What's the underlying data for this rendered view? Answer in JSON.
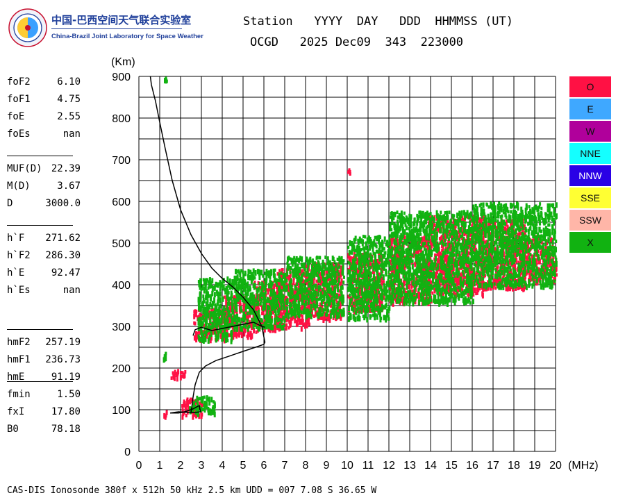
{
  "header": {
    "org_cn": "中国-巴西空间天气联合实验室",
    "org_en": "China-Brazil Joint Laboratory for Space Weather",
    "labels_line": "Station   YYYY  DAY   DDD  HHMMSS (UT)",
    "values_line": "OCGD   2025 Dec09  343  223000"
  },
  "params": {
    "groups": [
      [
        {
          "label": "foF2",
          "value": "6.10"
        },
        {
          "label": "foF1",
          "value": "4.75"
        },
        {
          "label": "foE",
          "value": "2.55"
        },
        {
          "label": "foEs",
          "value": "nan"
        }
      ],
      [
        {
          "label": "MUF(D)",
          "value": "22.39"
        },
        {
          "label": "M(D)",
          "value": "3.67"
        },
        {
          "label": "D",
          "value": "3000.0"
        }
      ],
      [
        {
          "label": "h`F",
          "value": "271.62"
        },
        {
          "label": "h`F2",
          "value": "286.30"
        },
        {
          "label": "h`E",
          "value": "92.47"
        },
        {
          "label": "h`Es",
          "value": "nan"
        }
      ],
      [
        {
          "label": "hmF2",
          "value": "257.19"
        },
        {
          "label": "hmF1",
          "value": "236.73"
        },
        {
          "label": "hmE",
          "value": "91.19"
        }
      ],
      [
        {
          "label": "fmin",
          "value": "1.50"
        },
        {
          "label": "fxI",
          "value": "17.80"
        },
        {
          "label": "B0",
          "value": "78.18"
        }
      ]
    ]
  },
  "legend": [
    {
      "label": "O",
      "color": "#ff1144"
    },
    {
      "label": "E",
      "color": "#3fa8ff"
    },
    {
      "label": "W",
      "color": "#b0009b"
    },
    {
      "label": "NNE",
      "color": "#14ffff"
    },
    {
      "label": "NNW",
      "color": "#2a00e6"
    },
    {
      "label": "SSE",
      "color": "#ffff33"
    },
    {
      "label": "SSW",
      "color": "#ffb6a8"
    },
    {
      "label": "X",
      "color": "#11b211"
    }
  ],
  "footer": "CAS-DIS Ionosonde 380f x 512h 50 kHz 2.5 km UDD = 007 7.08 S 36.65 W",
  "chart_data": {
    "type": "scatter",
    "title": "",
    "xlabel": "(MHz)",
    "ylabel": "(Km)",
    "xlim": [
      0,
      20
    ],
    "ylim": [
      0,
      900
    ],
    "xticks": [
      "0",
      "1",
      "2",
      "3",
      "4",
      "5",
      "6",
      "7",
      "8",
      "9",
      "10",
      "11",
      "12",
      "13",
      "14",
      "15",
      "16",
      "17",
      "18",
      "19",
      "20"
    ],
    "yticks": [
      "0",
      "100",
      "200",
      "300",
      "400",
      "500",
      "600",
      "700",
      "800",
      "900"
    ],
    "grid": true,
    "legend_position": "right",
    "series": [
      {
        "name": "O",
        "color": "#ff1144",
        "clusters": [
          {
            "x": [
              1.1,
              1.3
            ],
            "y": [
              88,
              100
            ]
          },
          {
            "x": [
              1.5,
              2.3
            ],
            "y": [
              178,
              198
            ]
          },
          {
            "x": [
              2.0,
              3.0
            ],
            "y": [
              88,
              130
            ]
          },
          {
            "x": [
              2.6,
              4.2
            ],
            "y": [
              272,
              345
            ]
          },
          {
            "x": [
              4.0,
              5.5
            ],
            "y": [
              280,
              375
            ]
          },
          {
            "x": [
              5.4,
              6.8
            ],
            "y": [
              290,
              410
            ]
          },
          {
            "x": [
              6.6,
              8.2
            ],
            "y": [
              300,
              440
            ]
          },
          {
            "x": [
              8.0,
              9.7
            ],
            "y": [
              320,
              455
            ]
          },
          {
            "x": [
              10.0,
              11.7
            ],
            "y": [
              340,
              480
            ]
          },
          {
            "x": [
              12.0,
              14.0
            ],
            "y": [
              360,
              520
            ]
          },
          {
            "x": [
              13.8,
              16.5
            ],
            "y": [
              380,
              570
            ]
          },
          {
            "x": [
              16.3,
              18.5
            ],
            "y": [
              395,
              560
            ]
          },
          {
            "x": [
              18.4,
              20.0
            ],
            "y": [
              410,
              520
            ]
          },
          {
            "x": [
              10.0,
              10.1
            ],
            "y": [
              665,
              680
            ]
          }
        ]
      },
      {
        "name": "X",
        "color": "#11b211",
        "clusters": [
          {
            "x": [
              1.15,
              1.25
            ],
            "y": [
              225,
              240
            ]
          },
          {
            "x": [
              2.4,
              3.6
            ],
            "y": [
              95,
              135
            ]
          },
          {
            "x": [
              2.8,
              4.5
            ],
            "y": [
              270,
              420
            ]
          },
          {
            "x": [
              4.5,
              7.0
            ],
            "y": [
              300,
              440
            ]
          },
          {
            "x": [
              7.0,
              9.8
            ],
            "y": [
              330,
              470
            ]
          },
          {
            "x": [
              10.0,
              12.0
            ],
            "y": [
              320,
              520
            ]
          },
          {
            "x": [
              12.0,
              16.0
            ],
            "y": [
              360,
              580
            ]
          },
          {
            "x": [
              16.0,
              20.0
            ],
            "y": [
              400,
              600
            ]
          },
          {
            "x": [
              1.2,
              1.3
            ],
            "y": [
              890,
              900
            ]
          }
        ]
      }
    ],
    "profile": {
      "name": "true-height profile",
      "x": [
        2.5,
        2.55,
        2.6,
        2.7,
        2.9,
        3.2,
        3.7,
        4.3,
        5.0,
        5.6,
        6.0,
        6.05,
        5.9,
        5.5,
        5.0,
        4.5,
        4.0,
        3.5,
        3.0,
        2.5,
        2.0,
        1.6,
        1.25,
        1.0,
        0.8,
        0.6,
        0.55
      ],
      "y": [
        93,
        110,
        130,
        160,
        190,
        205,
        218,
        228,
        240,
        250,
        257,
        262,
        300,
        340,
        370,
        395,
        415,
        440,
        475,
        520,
        580,
        650,
        730,
        790,
        840,
        880,
        900
      ]
    },
    "virtual_trace": {
      "name": "virtual-height trace",
      "x": [
        2.6,
        2.7,
        3.0,
        3.5,
        4.0,
        4.5,
        5.0,
        5.5,
        5.9,
        6.05
      ],
      "y": [
        278,
        292,
        298,
        290,
        295,
        300,
        305,
        310,
        300,
        298
      ]
    },
    "e_trace": {
      "name": "E trace",
      "x": [
        1.5,
        1.9,
        2.2,
        2.6,
        2.9,
        2.95,
        2.6,
        2.3,
        1.9,
        1.5
      ],
      "y": [
        92,
        92,
        95,
        102,
        110,
        95,
        93,
        94,
        95,
        92
      ]
    }
  }
}
